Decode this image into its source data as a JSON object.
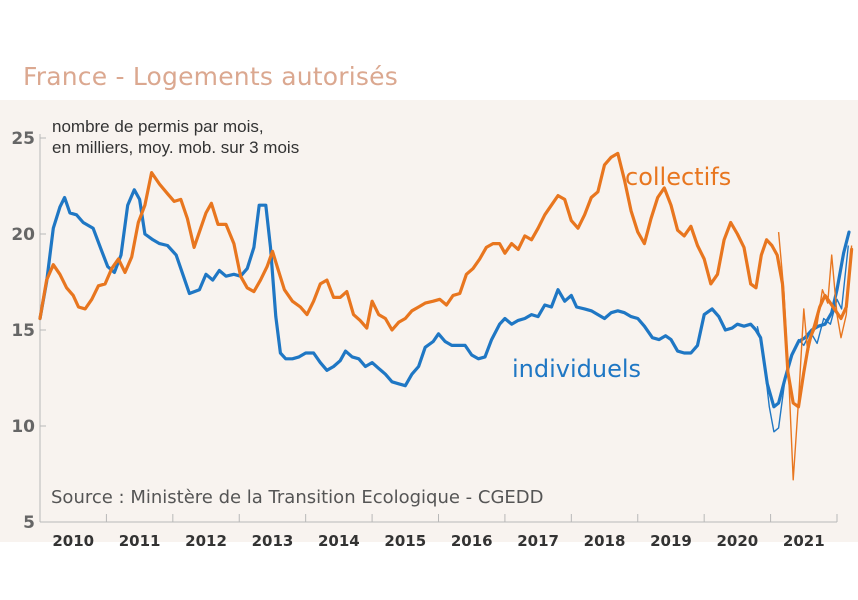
{
  "chart_data": {
    "type": "line",
    "title": "France - Logements autorisés",
    "ylabel_note": [
      "nombre de permis par mois,",
      "en milliers, moy. mob. sur 3 mois"
    ],
    "source": "Source : Ministère de la Transition Ecologique - CGEDD",
    "ylim": [
      5,
      25
    ],
    "yticks": [
      "5",
      "10",
      "15",
      "20",
      "25"
    ],
    "xlim": [
      2009.5,
      2021.5
    ],
    "xticks": [
      "2010",
      "2011",
      "2012",
      "2013",
      "2014",
      "2015",
      "2016",
      "2017",
      "2018",
      "2019",
      "2020",
      "2021"
    ],
    "colors": {
      "individuels": "#1f77c4",
      "collectifs": "#e8761f",
      "background": "#f8f3ef",
      "grid": "#b8b8b8"
    },
    "series": [
      {
        "name": "individuels",
        "label": "individuels",
        "color": "#1f77c4",
        "points": [
          [
            2009.5,
            15.6
          ],
          [
            2009.6,
            17.5
          ],
          [
            2009.7,
            20.3
          ],
          [
            2009.8,
            21.4
          ],
          [
            2009.87,
            21.9
          ],
          [
            2009.95,
            21.1
          ],
          [
            2010.05,
            21.0
          ],
          [
            2010.15,
            20.6
          ],
          [
            2010.3,
            20.3
          ],
          [
            2010.42,
            19.2
          ],
          [
            2010.52,
            18.3
          ],
          [
            2010.62,
            18.0
          ],
          [
            2010.72,
            18.9
          ],
          [
            2010.82,
            21.5
          ],
          [
            2010.92,
            22.3
          ],
          [
            2011.0,
            21.8
          ],
          [
            2011.08,
            20.0
          ],
          [
            2011.2,
            19.7
          ],
          [
            2011.3,
            19.5
          ],
          [
            2011.42,
            19.4
          ],
          [
            2011.55,
            18.9
          ],
          [
            2011.65,
            17.9
          ],
          [
            2011.75,
            16.9
          ],
          [
            2011.9,
            17.1
          ],
          [
            2012.0,
            17.9
          ],
          [
            2012.1,
            17.6
          ],
          [
            2012.2,
            18.1
          ],
          [
            2012.3,
            17.8
          ],
          [
            2012.42,
            17.9
          ],
          [
            2012.52,
            17.8
          ],
          [
            2012.62,
            18.2
          ],
          [
            2012.72,
            19.3
          ],
          [
            2012.8,
            21.5
          ],
          [
            2012.9,
            21.5
          ],
          [
            2012.97,
            19.3
          ],
          [
            2013.05,
            15.7
          ],
          [
            2013.12,
            13.8
          ],
          [
            2013.2,
            13.5
          ],
          [
            2013.3,
            13.5
          ],
          [
            2013.4,
            13.6
          ],
          [
            2013.5,
            13.8
          ],
          [
            2013.62,
            13.8
          ],
          [
            2013.72,
            13.3
          ],
          [
            2013.82,
            12.9
          ],
          [
            2013.92,
            13.1
          ],
          [
            2014.02,
            13.4
          ],
          [
            2014.1,
            13.9
          ],
          [
            2014.2,
            13.6
          ],
          [
            2014.3,
            13.5
          ],
          [
            2014.4,
            13.1
          ],
          [
            2014.5,
            13.3
          ],
          [
            2014.6,
            13.0
          ],
          [
            2014.7,
            12.7
          ],
          [
            2014.8,
            12.3
          ],
          [
            2014.9,
            12.2
          ],
          [
            2015.0,
            12.1
          ],
          [
            2015.1,
            12.7
          ],
          [
            2015.2,
            13.1
          ],
          [
            2015.3,
            14.1
          ],
          [
            2015.42,
            14.4
          ],
          [
            2015.5,
            14.8
          ],
          [
            2015.6,
            14.4
          ],
          [
            2015.7,
            14.2
          ],
          [
            2015.8,
            14.2
          ],
          [
            2015.9,
            14.2
          ],
          [
            2016.0,
            13.7
          ],
          [
            2016.1,
            13.5
          ],
          [
            2016.2,
            13.6
          ],
          [
            2016.3,
            14.5
          ],
          [
            2016.42,
            15.3
          ],
          [
            2016.5,
            15.6
          ],
          [
            2016.6,
            15.3
          ],
          [
            2016.7,
            15.5
          ],
          [
            2016.8,
            15.6
          ],
          [
            2016.9,
            15.8
          ],
          [
            2017.0,
            15.7
          ],
          [
            2017.1,
            16.3
          ],
          [
            2017.2,
            16.2
          ],
          [
            2017.3,
            17.1
          ],
          [
            2017.4,
            16.5
          ],
          [
            2017.5,
            16.8
          ],
          [
            2017.58,
            16.2
          ],
          [
            2017.7,
            16.1
          ],
          [
            2017.8,
            16.0
          ],
          [
            2017.9,
            15.8
          ],
          [
            2018.0,
            15.6
          ],
          [
            2018.1,
            15.9
          ],
          [
            2018.2,
            16.0
          ],
          [
            2018.3,
            15.9
          ],
          [
            2018.4,
            15.7
          ],
          [
            2018.5,
            15.6
          ],
          [
            2018.6,
            15.2
          ],
          [
            2018.72,
            14.6
          ],
          [
            2018.82,
            14.5
          ],
          [
            2018.92,
            14.7
          ],
          [
            2019.0,
            14.5
          ],
          [
            2019.1,
            13.9
          ],
          [
            2019.2,
            13.8
          ],
          [
            2019.3,
            13.8
          ],
          [
            2019.4,
            14.2
          ],
          [
            2019.5,
            15.8
          ],
          [
            2019.62,
            16.1
          ],
          [
            2019.72,
            15.7
          ],
          [
            2019.82,
            15.0
          ],
          [
            2019.92,
            15.1
          ],
          [
            2020.0,
            15.3
          ],
          [
            2020.1,
            15.2
          ],
          [
            2020.2,
            15.3
          ],
          [
            2020.28,
            15.0
          ],
          [
            2020.35,
            14.6
          ],
          [
            2020.45,
            12.2
          ],
          [
            2020.55,
            11.0
          ],
          [
            2020.62,
            11.2
          ],
          [
            2020.72,
            12.5
          ],
          [
            2020.82,
            13.7
          ],
          [
            2020.92,
            14.4
          ],
          [
            2021.02,
            14.6
          ],
          [
            2021.12,
            15.0
          ],
          [
            2021.22,
            15.2
          ],
          [
            2021.32,
            15.3
          ],
          [
            2021.42,
            15.9
          ],
          [
            2021.5,
            17.1
          ],
          [
            2021.6,
            19.0
          ],
          [
            2021.68,
            20.1
          ]
        ],
        "thin_points": [
          [
            2020.3,
            15.2
          ],
          [
            2020.38,
            14.0
          ],
          [
            2020.48,
            11.0
          ],
          [
            2020.55,
            9.7
          ],
          [
            2020.62,
            9.9
          ],
          [
            2020.72,
            12.5
          ],
          [
            2020.82,
            13.6
          ],
          [
            2020.92,
            14.5
          ],
          [
            2021.0,
            14.2
          ],
          [
            2021.1,
            14.9
          ],
          [
            2021.2,
            14.3
          ],
          [
            2021.3,
            15.6
          ],
          [
            2021.4,
            15.3
          ],
          [
            2021.5,
            16.6
          ],
          [
            2021.57,
            16.1
          ],
          [
            2021.67,
            19.4
          ]
        ]
      },
      {
        "name": "collectifs",
        "label": "collectifs",
        "color": "#e8761f",
        "points": [
          [
            2009.5,
            15.6
          ],
          [
            2009.6,
            17.6
          ],
          [
            2009.7,
            18.4
          ],
          [
            2009.8,
            17.9
          ],
          [
            2009.9,
            17.2
          ],
          [
            2010.0,
            16.8
          ],
          [
            2010.08,
            16.2
          ],
          [
            2010.18,
            16.1
          ],
          [
            2010.28,
            16.6
          ],
          [
            2010.38,
            17.3
          ],
          [
            2010.48,
            17.4
          ],
          [
            2010.58,
            18.2
          ],
          [
            2010.68,
            18.7
          ],
          [
            2010.78,
            18.0
          ],
          [
            2010.88,
            18.8
          ],
          [
            2010.98,
            20.6
          ],
          [
            2011.08,
            21.5
          ],
          [
            2011.18,
            23.2
          ],
          [
            2011.3,
            22.6
          ],
          [
            2011.42,
            22.1
          ],
          [
            2011.52,
            21.7
          ],
          [
            2011.62,
            21.8
          ],
          [
            2011.72,
            20.8
          ],
          [
            2011.82,
            19.3
          ],
          [
            2011.92,
            20.3
          ],
          [
            2012.0,
            21.1
          ],
          [
            2012.08,
            21.6
          ],
          [
            2012.18,
            20.5
          ],
          [
            2012.3,
            20.5
          ],
          [
            2012.42,
            19.5
          ],
          [
            2012.52,
            17.8
          ],
          [
            2012.62,
            17.2
          ],
          [
            2012.72,
            17.0
          ],
          [
            2012.82,
            17.6
          ],
          [
            2012.92,
            18.3
          ],
          [
            2013.0,
            19.1
          ],
          [
            2013.08,
            18.2
          ],
          [
            2013.18,
            17.1
          ],
          [
            2013.3,
            16.5
          ],
          [
            2013.42,
            16.2
          ],
          [
            2013.52,
            15.8
          ],
          [
            2013.62,
            16.5
          ],
          [
            2013.72,
            17.4
          ],
          [
            2013.82,
            17.6
          ],
          [
            2013.92,
            16.7
          ],
          [
            2014.02,
            16.7
          ],
          [
            2014.12,
            17.0
          ],
          [
            2014.22,
            15.8
          ],
          [
            2014.32,
            15.5
          ],
          [
            2014.42,
            15.1
          ],
          [
            2014.5,
            16.5
          ],
          [
            2014.6,
            15.8
          ],
          [
            2014.7,
            15.6
          ],
          [
            2014.8,
            15.0
          ],
          [
            2014.9,
            15.4
          ],
          [
            2015.0,
            15.6
          ],
          [
            2015.1,
            16.0
          ],
          [
            2015.2,
            16.2
          ],
          [
            2015.3,
            16.4
          ],
          [
            2015.42,
            16.5
          ],
          [
            2015.52,
            16.6
          ],
          [
            2015.62,
            16.3
          ],
          [
            2015.72,
            16.8
          ],
          [
            2015.82,
            16.9
          ],
          [
            2015.92,
            17.9
          ],
          [
            2016.02,
            18.2
          ],
          [
            2016.12,
            18.7
          ],
          [
            2016.22,
            19.3
          ],
          [
            2016.32,
            19.5
          ],
          [
            2016.42,
            19.5
          ],
          [
            2016.5,
            19.0
          ],
          [
            2016.6,
            19.5
          ],
          [
            2016.7,
            19.2
          ],
          [
            2016.8,
            19.9
          ],
          [
            2016.9,
            19.7
          ],
          [
            2017.0,
            20.3
          ],
          [
            2017.1,
            21.0
          ],
          [
            2017.2,
            21.5
          ],
          [
            2017.3,
            22.0
          ],
          [
            2017.4,
            21.8
          ],
          [
            2017.5,
            20.7
          ],
          [
            2017.6,
            20.3
          ],
          [
            2017.7,
            21.0
          ],
          [
            2017.8,
            21.9
          ],
          [
            2017.9,
            22.2
          ],
          [
            2018.0,
            23.6
          ],
          [
            2018.1,
            24.0
          ],
          [
            2018.2,
            24.2
          ],
          [
            2018.3,
            22.8
          ],
          [
            2018.4,
            21.2
          ],
          [
            2018.5,
            20.1
          ],
          [
            2018.6,
            19.5
          ],
          [
            2018.7,
            20.8
          ],
          [
            2018.8,
            21.9
          ],
          [
            2018.9,
            22.4
          ],
          [
            2019.0,
            21.5
          ],
          [
            2019.1,
            20.2
          ],
          [
            2019.2,
            19.9
          ],
          [
            2019.3,
            20.4
          ],
          [
            2019.4,
            19.4
          ],
          [
            2019.5,
            18.7
          ],
          [
            2019.6,
            17.4
          ],
          [
            2019.7,
            17.9
          ],
          [
            2019.8,
            19.7
          ],
          [
            2019.9,
            20.6
          ],
          [
            2020.0,
            20.0
          ],
          [
            2020.1,
            19.3
          ],
          [
            2020.2,
            17.4
          ],
          [
            2020.28,
            17.2
          ],
          [
            2020.36,
            18.9
          ],
          [
            2020.44,
            19.7
          ],
          [
            2020.52,
            19.4
          ],
          [
            2020.6,
            18.9
          ],
          [
            2020.68,
            17.4
          ],
          [
            2020.76,
            12.8
          ],
          [
            2020.84,
            11.2
          ],
          [
            2020.92,
            11.0
          ],
          [
            2021.0,
            12.8
          ],
          [
            2021.08,
            14.4
          ],
          [
            2021.16,
            15.2
          ],
          [
            2021.24,
            16.2
          ],
          [
            2021.32,
            16.8
          ],
          [
            2021.4,
            16.4
          ],
          [
            2021.48,
            16.0
          ],
          [
            2021.56,
            15.6
          ],
          [
            2021.64,
            16.2
          ],
          [
            2021.72,
            19.2
          ]
        ],
        "thin_points": [
          [
            2020.62,
            20.1
          ],
          [
            2020.7,
            17.0
          ],
          [
            2020.78,
            12.0
          ],
          [
            2020.84,
            7.2
          ],
          [
            2020.92,
            11.3
          ],
          [
            2021.0,
            16.1
          ],
          [
            2021.06,
            13.8
          ],
          [
            2021.12,
            14.7
          ],
          [
            2021.2,
            15.3
          ],
          [
            2021.28,
            17.1
          ],
          [
            2021.36,
            16.4
          ],
          [
            2021.42,
            18.9
          ],
          [
            2021.5,
            15.8
          ],
          [
            2021.56,
            14.6
          ],
          [
            2021.64,
            15.8
          ],
          [
            2021.72,
            19.4
          ]
        ]
      }
    ]
  }
}
